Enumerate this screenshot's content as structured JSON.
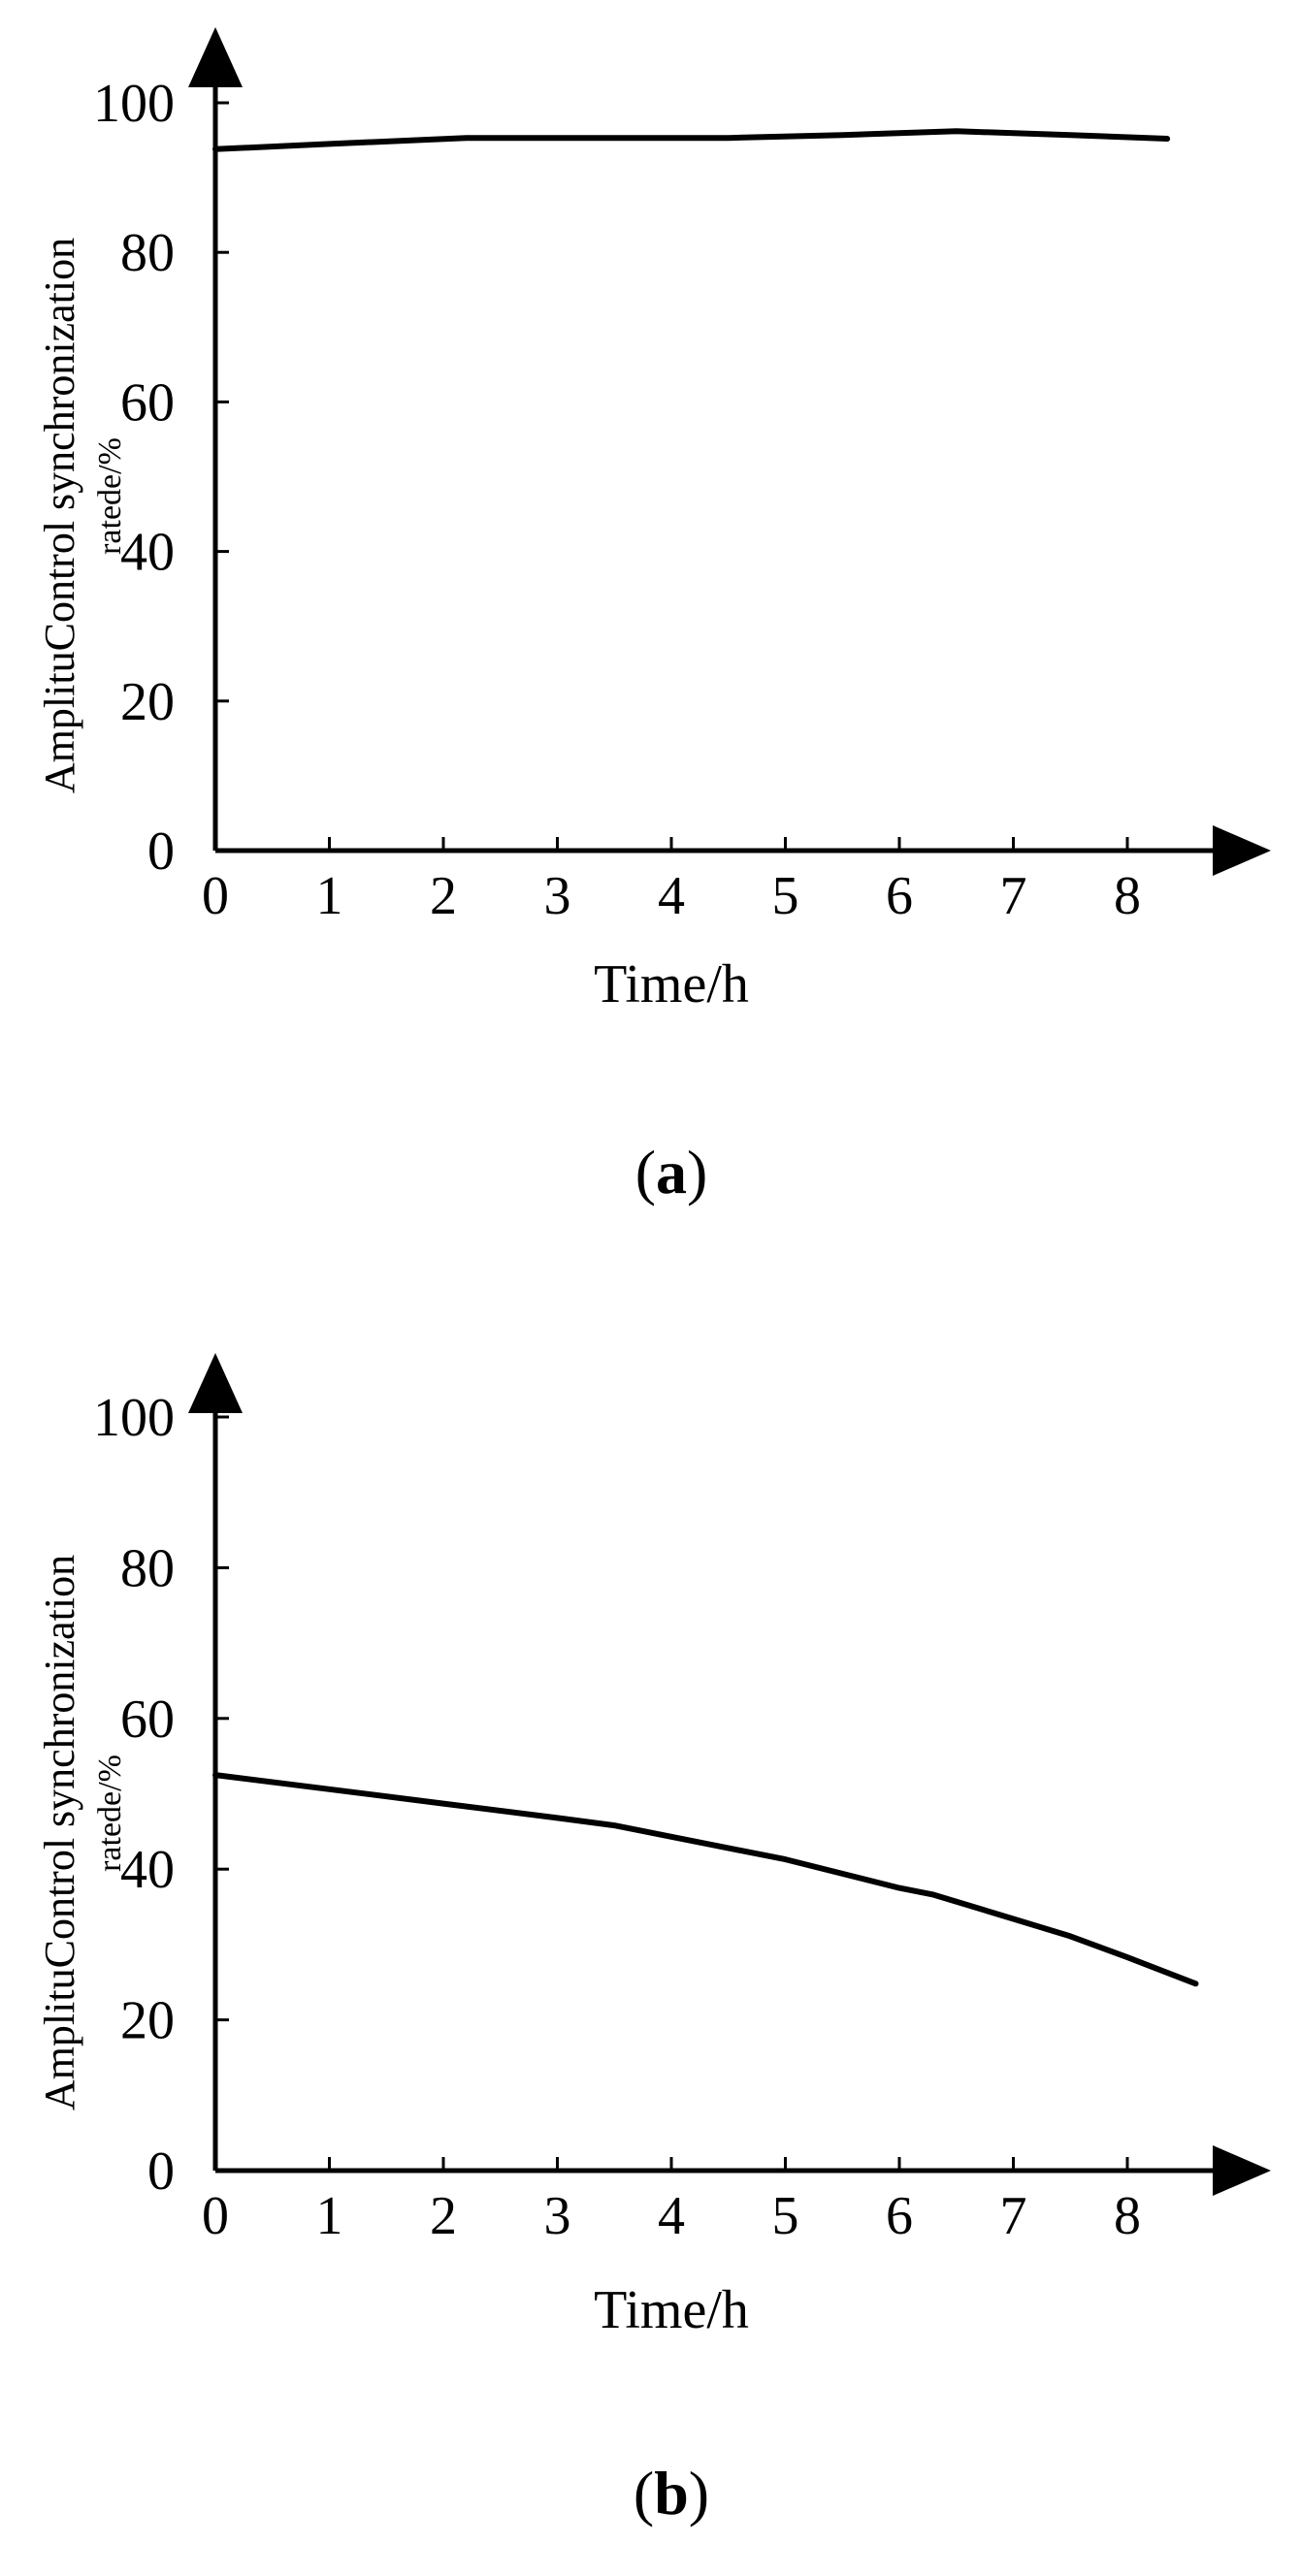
{
  "chart_data": [
    {
      "type": "line",
      "panel_label": "a",
      "xlabel": "Time/h",
      "ylabel_line1": "AmplituControl synchronization",
      "ylabel_line2": "ratede/%",
      "xticks": [
        "0",
        "1",
        "2",
        "3",
        "4",
        "5",
        "6",
        "7",
        "8"
      ],
      "yticks": [
        "0",
        "20",
        "40",
        "60",
        "80",
        "100"
      ],
      "xlim": [
        0,
        9.2
      ],
      "ylim": [
        0,
        100
      ],
      "grid": false,
      "legend": "none",
      "series": [
        {
          "x": [
            0,
            1,
            2.2,
            3.5,
            4.5,
            5.5,
            6.5,
            7.5,
            8.35
          ],
          "y": [
            93.8,
            94.5,
            95.3,
            95.3,
            95.3,
            95.7,
            96.2,
            95.7,
            95.2
          ]
        }
      ]
    },
    {
      "type": "line",
      "panel_label": "b",
      "xlabel": "Time/h",
      "ylabel_line1": "AmplituControl synchronization",
      "ylabel_line2": "ratede/%",
      "xticks": [
        "0",
        "1",
        "2",
        "3",
        "4",
        "5",
        "6",
        "7",
        "8"
      ],
      "yticks": [
        "0",
        "20",
        "40",
        "60",
        "80",
        "100"
      ],
      "xlim": [
        0,
        9.2
      ],
      "ylim": [
        0,
        100
      ],
      "grid": false,
      "legend": "none",
      "series": [
        {
          "x": [
            0,
            1,
            2,
            3,
            3.5,
            4,
            5,
            6,
            6.3,
            7,
            7.5,
            8,
            8.6
          ],
          "y": [
            52.5,
            50.6,
            48.7,
            46.8,
            45.8,
            44.3,
            41.3,
            37.5,
            36.6,
            33.4,
            31.1,
            28.3,
            24.8
          ]
        }
      ]
    }
  ]
}
